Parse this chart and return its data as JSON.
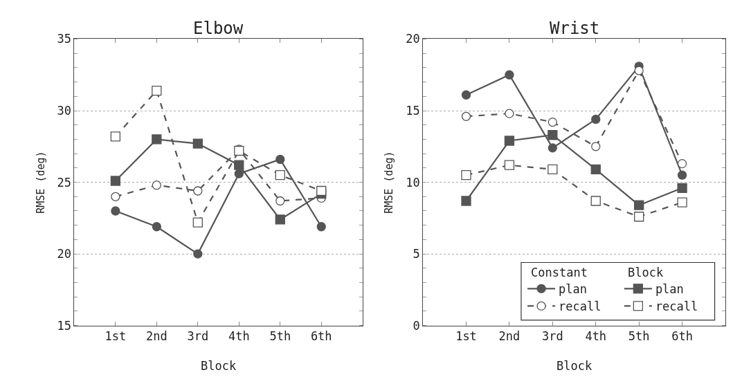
{
  "chart_data": [
    {
      "type": "line",
      "title": "Elbow",
      "xlabel": "Block",
      "ylabel": "RMSE (deg)",
      "categories": [
        "1st",
        "2nd",
        "3rd",
        "4th",
        "5th",
        "6th"
      ],
      "ylim": [
        15,
        35
      ],
      "yticks": [
        15,
        20,
        25,
        30,
        35
      ],
      "grid": "y",
      "series": [
        {
          "color": "#555555",
          "marker": "circle",
          "line_style": "solid",
          "values": [
            23.0,
            21.9,
            20.0,
            25.6,
            26.6,
            21.9
          ]
        },
        {
          "color": "#555555",
          "marker": "circle",
          "line_style": "dashed",
          "values": [
            24.0,
            24.8,
            24.4,
            27.3,
            23.7,
            23.9
          ]
        },
        {
          "color": "#555555",
          "marker": "square",
          "line_style": "solid",
          "values": [
            25.1,
            28.0,
            27.7,
            26.2,
            22.4,
            24.2
          ]
        },
        {
          "color": "#555555",
          "marker": "square",
          "line_style": "dashed",
          "values": [
            28.2,
            31.4,
            22.2,
            27.2,
            25.5,
            24.4
          ]
        }
      ]
    },
    {
      "type": "line",
      "title": "Wrist",
      "xlabel": "Block",
      "ylabel": "RMSE (deg)",
      "categories": [
        "1st",
        "2nd",
        "3rd",
        "4th",
        "5th",
        "6th"
      ],
      "ylim": [
        0,
        20
      ],
      "yticks": [
        0,
        5,
        10,
        15,
        20
      ],
      "grid": "y",
      "legend": "bottom right",
      "annotations": [
        "Constant",
        "Block"
      ],
      "series": [
        {
          "name": "plan",
          "color": "#555555",
          "marker": "circle",
          "line_style": "solid",
          "values": [
            16.1,
            17.5,
            12.4,
            14.4,
            18.1,
            10.5
          ]
        },
        {
          "name": "recall",
          "color": "#555555",
          "marker": "circle",
          "line_style": "dashed",
          "values": [
            14.6,
            14.8,
            14.2,
            12.5,
            17.8,
            11.3
          ]
        },
        {
          "name": "plan",
          "color": "#555555",
          "marker": "square",
          "line_style": "solid",
          "values": [
            8.7,
            12.9,
            13.3,
            10.9,
            8.4,
            9.6
          ]
        },
        {
          "name": "recall",
          "color": "#555555",
          "marker": "square",
          "line_style": "dashed",
          "values": [
            10.5,
            11.2,
            10.9,
            8.7,
            7.6,
            8.6
          ]
        }
      ]
    }
  ]
}
